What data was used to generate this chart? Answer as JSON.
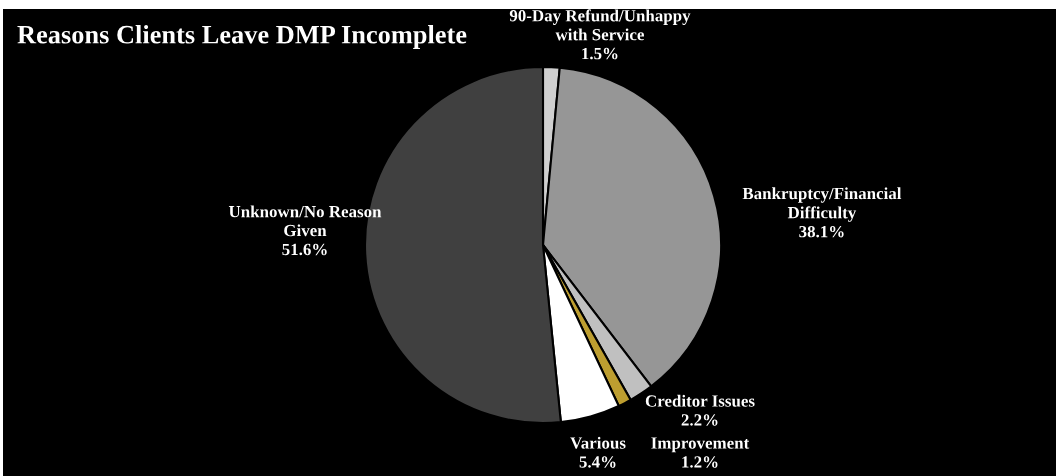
{
  "chart_data": {
    "type": "pie",
    "title": "Reasons Clients Leave DMP Incomplete",
    "categories": [
      "90-Day Refund/Unhappy\nwith Service",
      "Bankruptcy/Financial\nDifficulty",
      "Creditor Issues",
      "Improvement",
      "Various",
      "Unknown/No Reason\nGiven"
    ],
    "values": [
      1.5,
      38.1,
      2.2,
      1.2,
      5.4,
      51.6
    ],
    "value_labels": [
      "1.5%",
      "38.1%",
      "2.2%",
      "1.2%",
      "5.4%",
      "51.6%"
    ],
    "colors": [
      "#cfcfcf",
      "#969696",
      "#c0c0c0",
      "#bd9e30",
      "#ffffff",
      "#404040"
    ]
  }
}
